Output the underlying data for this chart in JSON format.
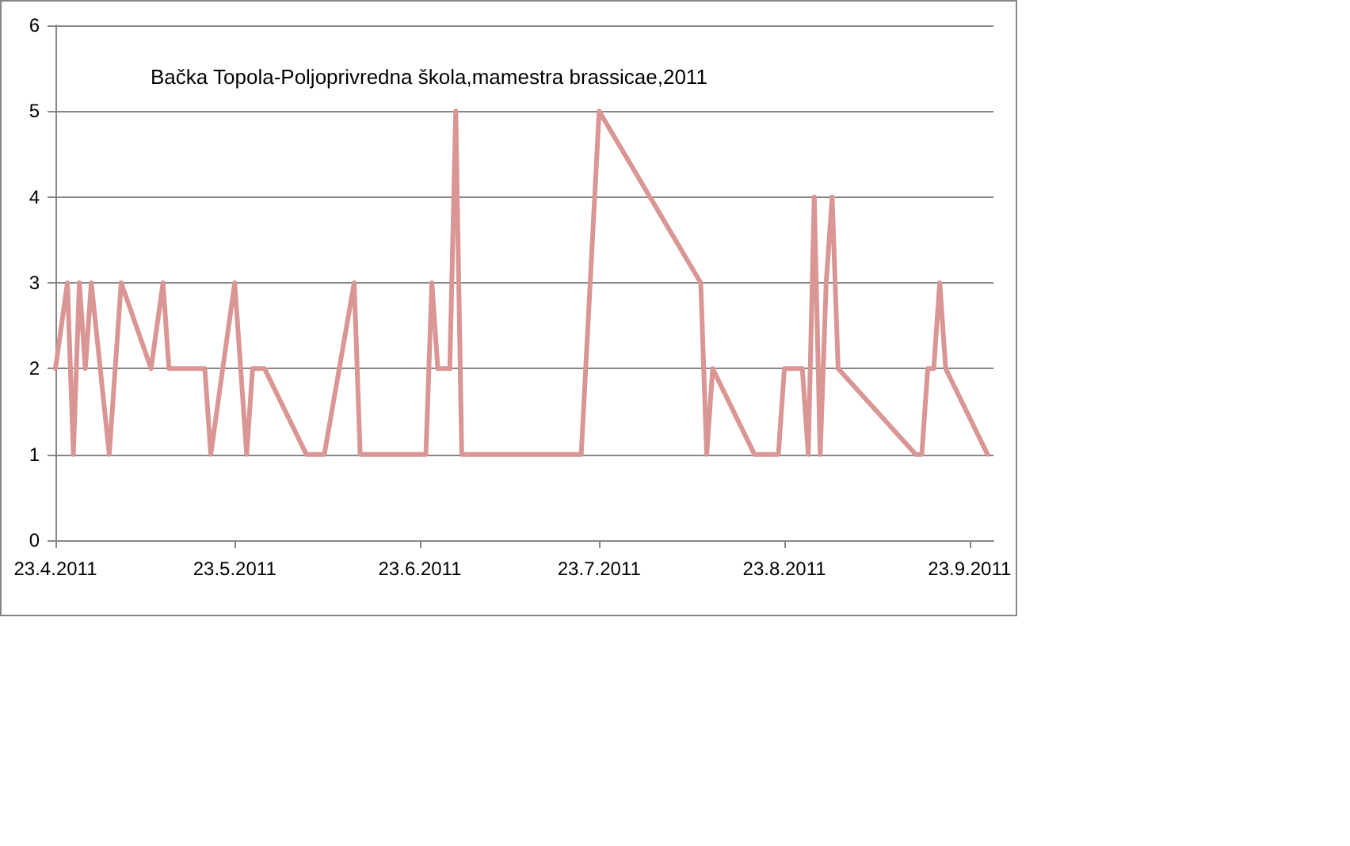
{
  "chart_data": {
    "type": "line",
    "title": "Bačka Topola-Poljoprivredna škola,mamestra brassicae,2011",
    "x": [
      "2011-04-23",
      "2011-04-25",
      "2011-04-26",
      "2011-04-27",
      "2011-04-28",
      "2011-04-29",
      "2011-05-02",
      "2011-05-04",
      "2011-05-09",
      "2011-05-11",
      "2011-05-12",
      "2011-05-18",
      "2011-05-19",
      "2011-05-23",
      "2011-05-25",
      "2011-05-26",
      "2011-05-28",
      "2011-06-04",
      "2011-06-07",
      "2011-06-12",
      "2011-06-13",
      "2011-06-24",
      "2011-06-25",
      "2011-06-26",
      "2011-06-28",
      "2011-06-29",
      "2011-06-30",
      "2011-07-20",
      "2011-07-23",
      "2011-08-09",
      "2011-08-10",
      "2011-08-11",
      "2011-08-18",
      "2011-08-22",
      "2011-08-23",
      "2011-08-26",
      "2011-08-27",
      "2011-08-28",
      "2011-08-29",
      "2011-08-30",
      "2011-08-31",
      "2011-09-01",
      "2011-09-14",
      "2011-09-15",
      "2011-09-16",
      "2011-09-17",
      "2011-09-18",
      "2011-09-19",
      "2011-09-26"
    ],
    "series": [
      {
        "color": "#d99694",
        "values": [
          2,
          3,
          1,
          3,
          2,
          3,
          1,
          3,
          2,
          3,
          2,
          2,
          1,
          3,
          1,
          2,
          2,
          1,
          1,
          3,
          1,
          1,
          3,
          2,
          2,
          5,
          1,
          1,
          5,
          3,
          1,
          2,
          1,
          1,
          2,
          2,
          1,
          4,
          1,
          3,
          4,
          2,
          1,
          1,
          2,
          2,
          3,
          2,
          1
        ]
      }
    ],
    "xlim": [
      "2011-04-23",
      "2011-09-27"
    ],
    "xticks": [
      {
        "value": "2011-04-23",
        "label": "23.4.2011"
      },
      {
        "value": "2011-05-23",
        "label": "23.5.2011"
      },
      {
        "value": "2011-06-23",
        "label": "23.6.2011"
      },
      {
        "value": "2011-07-23",
        "label": "23.7.2011"
      },
      {
        "value": "2011-08-23",
        "label": "23.8.2011"
      },
      {
        "value": "2011-09-23",
        "label": "23.9.2011"
      }
    ],
    "ylim": [
      0,
      6
    ],
    "yticks": [
      0,
      1,
      2,
      3,
      4,
      5,
      6
    ],
    "grid": "y",
    "marker": "none",
    "line_style": "solid"
  }
}
